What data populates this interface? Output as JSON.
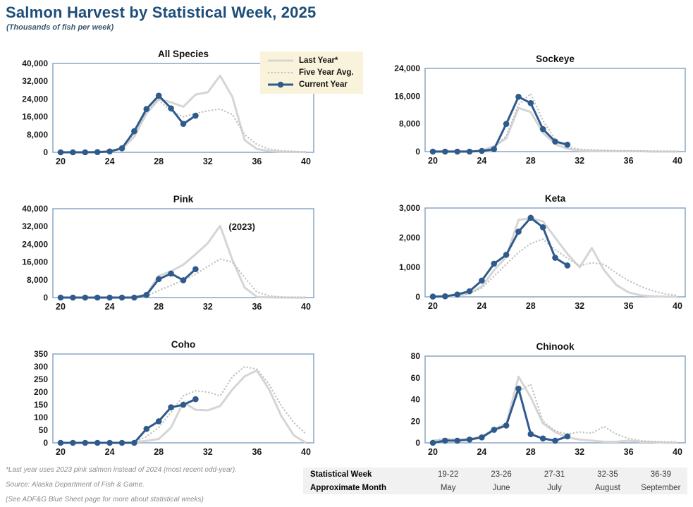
{
  "header": {
    "title": "Salmon Harvest by Statistical Week, 2025",
    "subtitle": "(Thousands of fish per week)"
  },
  "colors": {
    "accent_navy": "#1D4E79",
    "current_line": "#2E5B8C",
    "last_year_line": "#D5D5D5",
    "five_year_avg_line": "#C2C2C2",
    "plot_border": "#8CA5C2",
    "legend_bg": "#FAF3DC",
    "annotation": "#C2C2C2",
    "table_bg": "#F1F1F1"
  },
  "legend": {
    "items": [
      {
        "label": "Last Year*",
        "style": "solid_gray"
      },
      {
        "label": "Five Year Avg.",
        "style": "dotted_gray"
      },
      {
        "label": "Current Year",
        "style": "navy_marker"
      }
    ]
  },
  "chart_data": [
    {
      "type": "line",
      "title": "All Species",
      "x_range": [
        20,
        40
      ],
      "xticks": [
        20,
        24,
        28,
        32,
        36,
        40
      ],
      "ylim": [
        0,
        40000
      ],
      "yticks": [
        0,
        8000,
        16000,
        24000,
        32000,
        40000
      ],
      "series": [
        {
          "name": "Last Year*",
          "style": "solid_gray",
          "x_start": 20,
          "values": [
            100,
            100,
            100,
            200,
            400,
            1500,
            7000,
            17500,
            24000,
            22500,
            20500,
            26000,
            27000,
            34500,
            25000,
            5500,
            1500,
            600,
            300,
            200,
            100
          ]
        },
        {
          "name": "Five Year Avg.",
          "style": "dotted_gray",
          "x_start": 20,
          "values": [
            100,
            100,
            100,
            200,
            500,
            2000,
            8500,
            18000,
            23500,
            18500,
            16000,
            17500,
            18700,
            19500,
            17000,
            8000,
            3500,
            1500,
            700,
            400,
            200
          ]
        },
        {
          "name": "Current Year",
          "style": "navy_marker",
          "x_start": 20,
          "values": [
            0,
            0,
            0,
            100,
            400,
            1800,
            9500,
            19500,
            25500,
            19800,
            12800,
            16500
          ]
        }
      ]
    },
    {
      "type": "line",
      "title": "Sockeye",
      "x_range": [
        20,
        40
      ],
      "xticks": [
        20,
        24,
        28,
        32,
        36,
        40
      ],
      "ylim": [
        0,
        24000
      ],
      "yticks": [
        0,
        8000,
        16000,
        24000
      ],
      "series": [
        {
          "name": "Last Year*",
          "style": "solid_gray",
          "x_start": 20,
          "values": [
            100,
            100,
            100,
            100,
            300,
            1600,
            3800,
            12600,
            11400,
            5400,
            2200,
            800,
            300,
            200,
            100,
            100,
            100,
            100,
            0,
            0,
            0
          ]
        },
        {
          "name": "Five Year Avg.",
          "style": "dotted_gray",
          "x_start": 20,
          "values": [
            100,
            100,
            100,
            100,
            300,
            1200,
            4500,
            13500,
            16700,
            9000,
            3500,
            1300,
            700,
            500,
            400,
            300,
            250,
            200,
            150,
            100,
            100
          ]
        },
        {
          "name": "Current Year",
          "style": "navy_marker",
          "x_start": 20,
          "values": [
            0,
            0,
            0,
            0,
            200,
            700,
            8000,
            15800,
            14000,
            6500,
            2900,
            2000
          ]
        }
      ]
    },
    {
      "type": "line",
      "title": "Pink",
      "x_range": [
        20,
        40
      ],
      "xticks": [
        20,
        24,
        28,
        32,
        36,
        40
      ],
      "ylim": [
        0,
        40000
      ],
      "yticks": [
        0,
        8000,
        16000,
        24000,
        32000,
        40000
      ],
      "annotation": {
        "text": "(2023)",
        "week": 33.7,
        "value": 30500
      },
      "series": [
        {
          "name": "Last Year*",
          "style": "solid_gray",
          "x_start": 20,
          "values": [
            0,
            0,
            0,
            0,
            0,
            0,
            100,
            1500,
            9800,
            11800,
            14800,
            19500,
            24500,
            32300,
            17000,
            4500,
            300,
            100,
            0,
            0,
            0
          ]
        },
        {
          "name": "Five Year Avg.",
          "style": "dotted_gray",
          "x_start": 20,
          "values": [
            0,
            0,
            0,
            0,
            0,
            0,
            100,
            600,
            3200,
            5500,
            7800,
            10500,
            14000,
            17300,
            16000,
            9000,
            2500,
            800,
            300,
            100,
            0
          ]
        },
        {
          "name": "Current Year",
          "style": "navy_marker",
          "x_start": 20,
          "values": [
            0,
            0,
            0,
            0,
            0,
            0,
            0,
            1200,
            8300,
            10800,
            7800,
            12800
          ]
        }
      ]
    },
    {
      "type": "line",
      "title": "Keta",
      "x_range": [
        20,
        40
      ],
      "xticks": [
        20,
        24,
        28,
        32,
        36,
        40
      ],
      "ylim": [
        0,
        3000
      ],
      "yticks": [
        0,
        1000,
        2000,
        3000
      ],
      "series": [
        {
          "name": "Last Year*",
          "style": "solid_gray",
          "x_start": 20,
          "values": [
            10,
            20,
            40,
            120,
            350,
            900,
            1350,
            2600,
            2650,
            2550,
            2000,
            1450,
            1000,
            1650,
            900,
            400,
            150,
            50,
            20,
            10,
            0
          ]
        },
        {
          "name": "Five Year Avg.",
          "style": "dotted_gray",
          "x_start": 20,
          "values": [
            10,
            20,
            50,
            120,
            300,
            700,
            1100,
            1500,
            1800,
            1950,
            1600,
            1300,
            1050,
            1150,
            1100,
            800,
            550,
            350,
            200,
            100,
            50
          ]
        },
        {
          "name": "Current Year",
          "style": "navy_marker",
          "x_start": 20,
          "values": [
            10,
            20,
            80,
            190,
            550,
            1120,
            1420,
            2200,
            2670,
            2350,
            1320,
            1060
          ]
        }
      ]
    },
    {
      "type": "line",
      "title": "Coho",
      "x_range": [
        20,
        40
      ],
      "xticks": [
        20,
        24,
        28,
        32,
        36,
        40
      ],
      "ylim": [
        0,
        350
      ],
      "yticks": [
        0,
        50,
        100,
        150,
        200,
        250,
        300,
        350
      ],
      "series": [
        {
          "name": "Last Year*",
          "style": "solid_gray",
          "x_start": 20,
          "values": [
            0,
            0,
            0,
            0,
            0,
            0,
            2,
            8,
            15,
            60,
            160,
            130,
            128,
            145,
            210,
            262,
            285,
            210,
            105,
            30,
            0
          ]
        },
        {
          "name": "Five Year Avg.",
          "style": "dotted_gray",
          "x_start": 20,
          "values": [
            0,
            0,
            0,
            0,
            0,
            0,
            3,
            25,
            60,
            120,
            185,
            205,
            200,
            185,
            260,
            300,
            290,
            230,
            145,
            80,
            35
          ]
        },
        {
          "name": "Current Year",
          "style": "navy_marker",
          "x_start": 20,
          "values": [
            0,
            0,
            0,
            0,
            0,
            0,
            0,
            55,
            85,
            140,
            150,
            172
          ]
        }
      ]
    },
    {
      "type": "line",
      "title": "Chinook",
      "x_range": [
        20,
        40
      ],
      "xticks": [
        20,
        24,
        28,
        32,
        36,
        40
      ],
      "ylim": [
        0,
        80
      ],
      "yticks": [
        0,
        20,
        40,
        60,
        80
      ],
      "series": [
        {
          "name": "Last Year*",
          "style": "solid_gray",
          "x_start": 20,
          "values": [
            2,
            3,
            3,
            3,
            6,
            12,
            17,
            61,
            42,
            18,
            10,
            5,
            3,
            2,
            1,
            1,
            2,
            1,
            1,
            0,
            0
          ]
        },
        {
          "name": "Five Year Avg.",
          "style": "dotted_gray",
          "x_start": 20,
          "values": [
            2,
            4,
            3,
            4,
            6,
            13,
            18,
            47,
            54,
            20,
            11,
            8,
            10,
            9,
            15,
            8,
            4,
            2,
            1,
            1,
            1
          ]
        },
        {
          "name": "Current Year",
          "style": "navy_marker",
          "x_start": 20,
          "values": [
            0,
            2,
            2,
            3,
            5,
            12,
            16,
            50,
            8,
            4,
            2,
            6
          ]
        }
      ]
    }
  ],
  "footnotes": {
    "line1": "*Last year uses 2023 pink salmon instead of 2024 (most recent odd-year).",
    "line2": "Source: Alaska Department of Fish & Game.",
    "line3": "(See ADF&G Blue Sheet page for more about statistical weeks)"
  },
  "table": {
    "row1_label": "Statistical Week",
    "row2_label": "Approximate Month",
    "columns": [
      {
        "week": "19-22",
        "month": "May"
      },
      {
        "week": "23-26",
        "month": "June"
      },
      {
        "week": "27-31",
        "month": "July"
      },
      {
        "week": "32-35",
        "month": "August"
      },
      {
        "week": "36-39",
        "month": "September"
      }
    ]
  }
}
